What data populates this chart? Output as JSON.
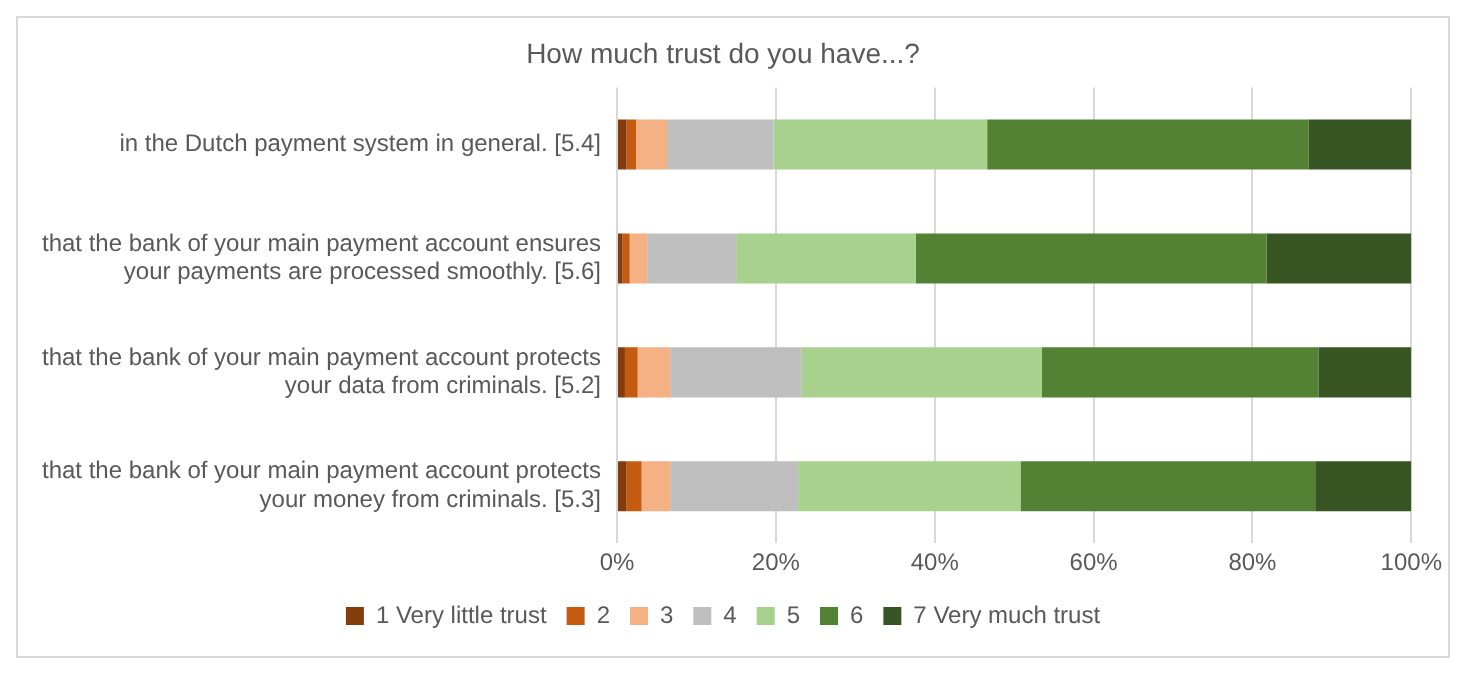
{
  "chart_data": {
    "type": "bar",
    "orientation": "horizontal",
    "stacked": true,
    "title": "How much trust do you have...?",
    "categories": [
      "in the Dutch payment system in general. [5.4]",
      "that the bank of your main payment account ensures your payments are processed smoothly. [5.6]",
      "that the bank of your main payment account protects your data from criminals. [5.2]",
      "that the bank of your main payment account protects your money from criminals. [5.3]"
    ],
    "series": [
      {
        "name": "1 Very little trust",
        "color": "#843c0c",
        "values": [
          1.2,
          0.7,
          1.0,
          1.2
        ]
      },
      {
        "name": "2",
        "color": "#c55a11",
        "values": [
          1.2,
          0.9,
          1.6,
          1.9
        ]
      },
      {
        "name": "3",
        "color": "#f4b183",
        "values": [
          3.9,
          2.2,
          4.1,
          3.6
        ]
      },
      {
        "name": "4",
        "color": "#bfbfbf",
        "values": [
          13.4,
          11.2,
          16.5,
          16.1
        ]
      },
      {
        "name": "5",
        "color": "#a9d18e",
        "values": [
          26.9,
          22.6,
          30.3,
          28.0
        ]
      },
      {
        "name": "6",
        "color": "#548235",
        "values": [
          40.5,
          44.2,
          34.8,
          37.1
        ]
      },
      {
        "name": "7 Very much trust",
        "color": "#375623",
        "values": [
          12.9,
          18.2,
          11.7,
          12.1
        ]
      }
    ],
    "xlim": [
      0,
      100
    ],
    "xticks": [
      {
        "value": 0,
        "label": "0%"
      },
      {
        "value": 20,
        "label": "20%"
      },
      {
        "value": 40,
        "label": "40%"
      },
      {
        "value": 60,
        "label": "60%"
      },
      {
        "value": 80,
        "label": "80%"
      },
      {
        "value": 100,
        "label": "100%"
      }
    ],
    "grid": "x",
    "legend": "bottom"
  }
}
